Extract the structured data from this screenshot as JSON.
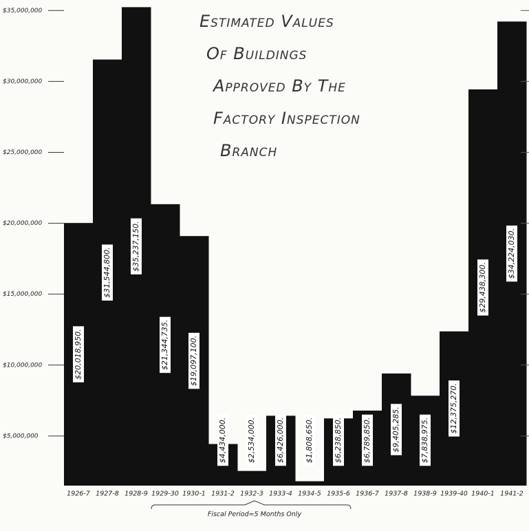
{
  "chart_data": {
    "type": "bar",
    "title": [
      "Estimated Values",
      "Of Buildings",
      "Approved By The",
      "Factory Inspection",
      "Branch"
    ],
    "categories": [
      "1926-7",
      "1927-8",
      "1928-9",
      "1929-30",
      "1930-1",
      "1931-2",
      "1932-3",
      "1933-4",
      "1934-5",
      "1935-6",
      "1936-7",
      "1937-8",
      "1938-9",
      "1939-40",
      "1940-1",
      "1941-2"
    ],
    "values": [
      20018950,
      31544800,
      35237150,
      21344735,
      19097100,
      4434000,
      2534000,
      6426000,
      1808650,
      6238850,
      6789850,
      9405285,
      7838975,
      12375270,
      29438300,
      34224030
    ],
    "value_labels": [
      "$20,018,950.",
      "$31,544,800.",
      "$35,237,150.",
      "$21,344,735.",
      "$19,097,100.",
      "$4,434,000.",
      "$2,534,000.",
      "$6,426,000.",
      "$1,808,650.",
      "$6,238,850.",
      "$6,789,850.",
      "$9,405,285.",
      "$7,838,975.",
      "$12,375,270.",
      "$29,438,300.",
      "$34,224,030."
    ],
    "annotation": "Fiscal Period=5 Months Only",
    "color": "#111111",
    "ylim": [
      1500000,
      35500000
    ],
    "yticks": [
      {
        "value": 5000000,
        "label": "$5,000,000"
      },
      {
        "value": 10000000,
        "label": "$10,000,000"
      },
      {
        "value": 15000000,
        "label": "$15,000,000"
      },
      {
        "value": 20000000,
        "label": "$20,000,000"
      },
      {
        "value": 25000000,
        "label": "$25,000,000"
      },
      {
        "value": 30000000,
        "label": "$30,000,000"
      },
      {
        "value": 35000000,
        "label": "$35,000,000"
      }
    ]
  }
}
